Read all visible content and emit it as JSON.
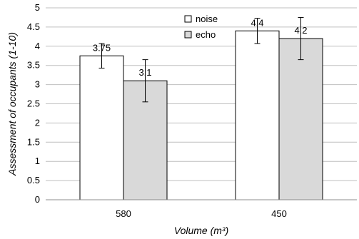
{
  "chart_data": {
    "type": "bar",
    "title": "",
    "xlabel": "Volume (m³)",
    "ylabel": "Assessment of occupants (1-10)",
    "ylim": [
      0,
      5
    ],
    "y_ticks": [
      "0",
      "0.5",
      "1",
      "1.5",
      "2",
      "2.5",
      "3",
      "3.5",
      "4",
      "4.5",
      "5"
    ],
    "grid": "horizontal",
    "legend_position": "top-center",
    "categories": [
      "580",
      "450"
    ],
    "series": [
      {
        "name": "noise",
        "color": "#ffffff",
        "values": [
          3.75,
          4.4
        ],
        "labels": [
          "3.75",
          "4.4"
        ],
        "error": [
          0.32,
          0.33
        ]
      },
      {
        "name": "echo",
        "color": "#d9d9d9",
        "values": [
          3.1,
          4.2
        ],
        "labels": [
          "3.1",
          "4.2"
        ],
        "error": [
          0.55,
          0.55
        ]
      }
    ]
  }
}
